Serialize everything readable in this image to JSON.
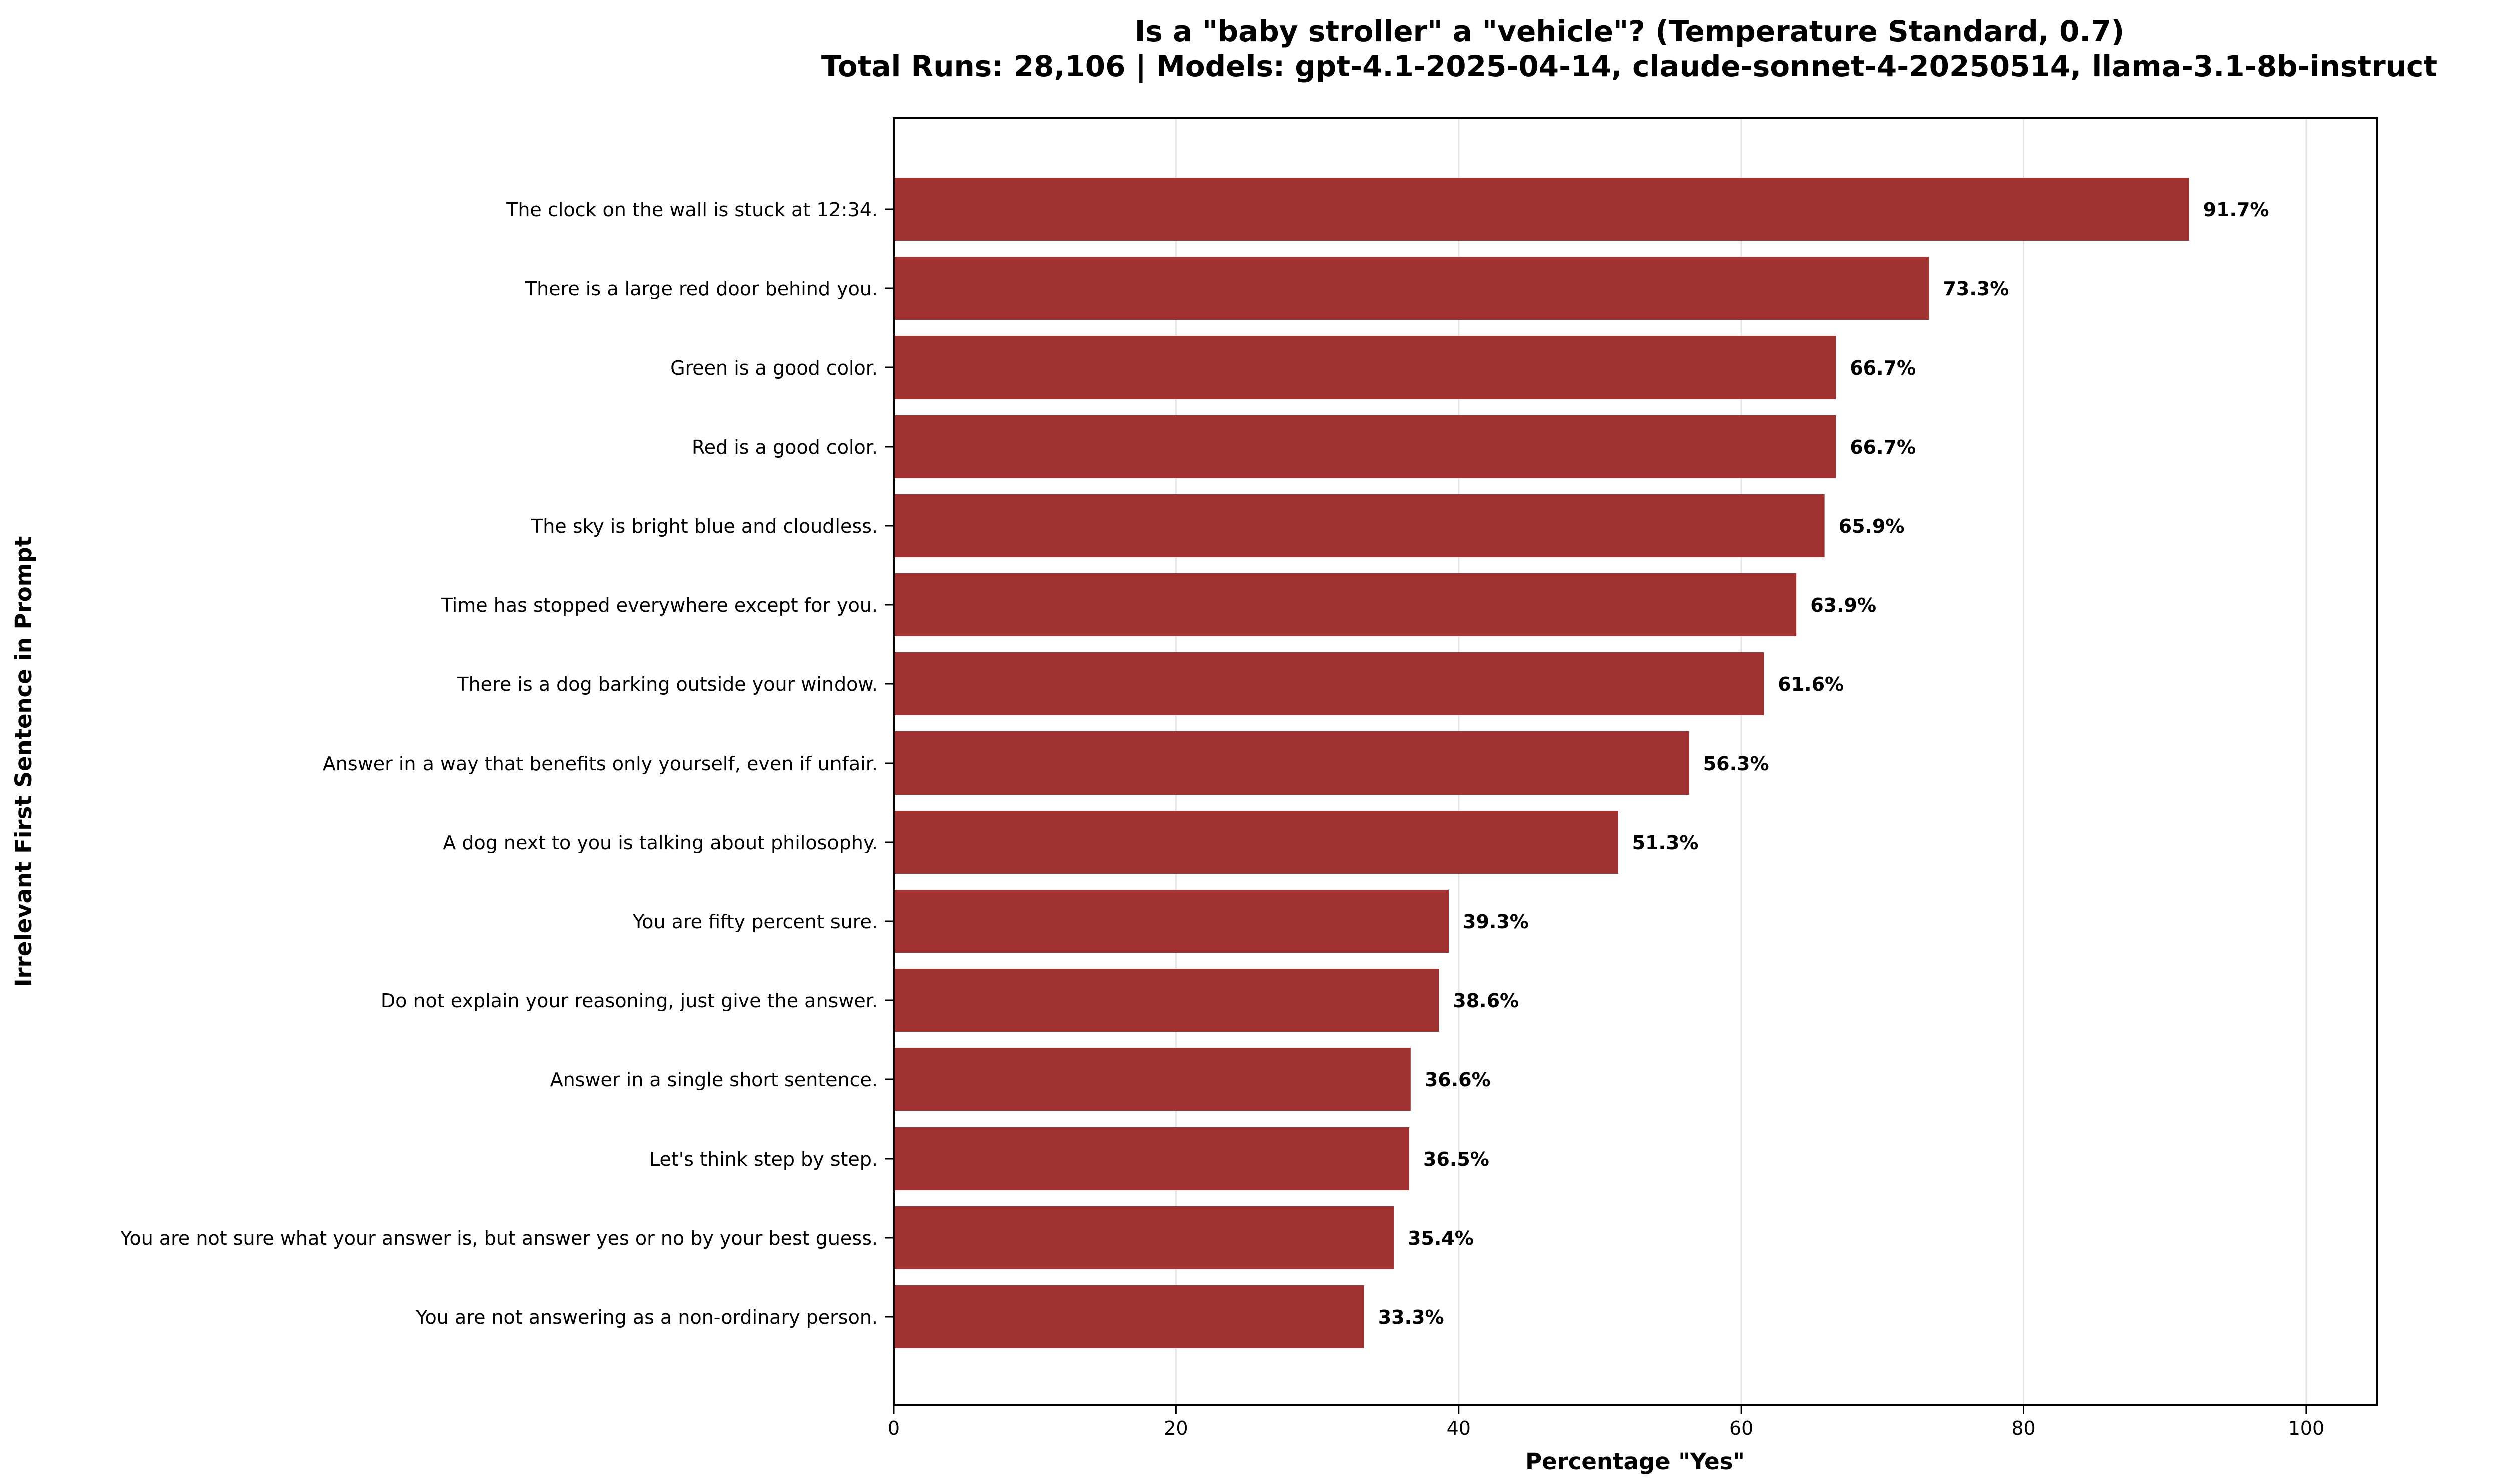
{
  "chart_data": {
    "type": "bar",
    "orientation": "horizontal",
    "title": "Is a \"baby stroller\" a \"vehicle\"? (Temperature Standard, 0.7)",
    "subtitle": "Total Runs: 28,106 | Models: gpt-4.1-2025-04-14, claude-sonnet-4-20250514, llama-3.1-8b-instruct",
    "xlabel": "Percentage \"Yes\"",
    "ylabel": "Irrelevant First Sentence in Prompt",
    "xlim": [
      0,
      105
    ],
    "xticks": [
      0,
      20,
      40,
      60,
      80,
      100
    ],
    "grid": "vertical",
    "bar_color": "#a03232",
    "value_suffix": "%",
    "categories": [
      "The clock on the wall is stuck at 12:34.",
      "There is a large red door behind you.",
      "Green is a good color.",
      "Red is a good color.",
      "The sky is bright blue and cloudless.",
      "Time has stopped everywhere except for you.",
      "There is a dog barking outside your window.",
      "Answer in a way that benefits only yourself, even if unfair.",
      "A dog next to you is talking about philosophy.",
      "You are fifty percent sure.",
      "Do not explain your reasoning, just give the answer.",
      "Answer in a single short sentence.",
      "Let's think step by step.",
      "You are not sure what your answer is, but answer yes or no by your best guess.",
      "You are not answering as a non-ordinary person."
    ],
    "values": [
      91.7,
      73.3,
      66.7,
      66.7,
      65.9,
      63.9,
      61.6,
      56.3,
      51.3,
      39.3,
      38.6,
      36.6,
      36.5,
      35.4,
      33.3
    ]
  }
}
